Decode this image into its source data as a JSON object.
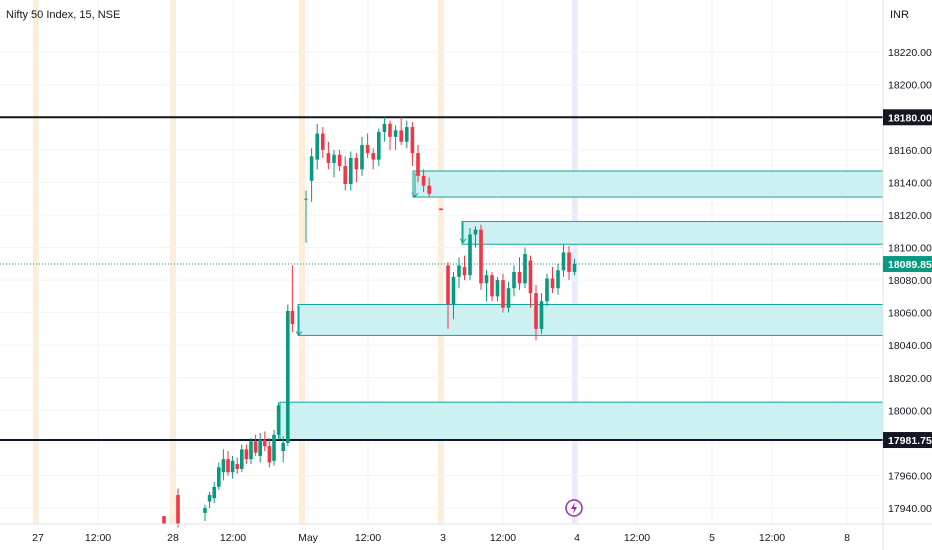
{
  "header": {
    "title": "Nifty 50 Index, 15, NSE",
    "currency": "INR"
  },
  "colors": {
    "up": "#089981",
    "down": "#f23645",
    "zone_fill": "#cdf0f3",
    "zone_border": "#12a596",
    "grid": "#f0f3fa",
    "level_line": "#131722",
    "price_line": "#089981",
    "session_orange": "#ffe8cc",
    "session_blue": "#e3e6fb",
    "alert": "#9c27b0"
  },
  "alert_icon": "lightning-icon",
  "chart_data": {
    "type": "candlestick",
    "title": "Nifty 50 Index, 15, NSE",
    "y_unit": "INR",
    "ylim": [
      17930,
      18235
    ],
    "y_ticks": [
      17940,
      17960,
      17980,
      18000,
      18020,
      18040,
      18060,
      18080,
      18100,
      18120,
      18140,
      18160,
      18180,
      18200,
      18220
    ],
    "y_tick_labels": [
      "17940.00",
      "17960.00",
      "17980.00",
      "18000.00",
      "18020.00",
      "18040.00",
      "18060.00",
      "18080.00",
      "18100.00",
      "18120.00",
      "18140.00",
      "18160.00",
      "18180.00",
      "18200.00",
      "18220.00"
    ],
    "x_tick_labels": [
      "27",
      "12:00",
      "28",
      "12:00",
      "May",
      "12:00",
      "3",
      "12:00",
      "4",
      "12:00",
      "5",
      "12:00",
      "8"
    ],
    "horizontal_levels": [
      {
        "value": 18180,
        "label": "18180.00"
      },
      {
        "value": 17981.75,
        "label": "17981.75"
      }
    ],
    "last_price": {
      "value": 18089.85,
      "label": "18089.85"
    },
    "zones": [
      {
        "from": 18131,
        "to": 18147
      },
      {
        "from": 18102,
        "to": 18116
      },
      {
        "from": 18046,
        "to": 18065
      },
      {
        "from": 17982,
        "to": 18005
      }
    ],
    "candles": [
      [
        17935,
        17935,
        17930,
        17930
      ],
      [
        17948,
        17952,
        17928,
        17930
      ],
      [
        17937,
        17942,
        17932,
        17940
      ],
      [
        17944,
        17950,
        17940,
        17948
      ],
      [
        17946,
        17956,
        17943,
        17953
      ],
      [
        17953,
        17968,
        17951,
        17965
      ],
      [
        17962,
        17976,
        17957,
        17970
      ],
      [
        17970,
        17975,
        17960,
        17962
      ],
      [
        17962,
        17972,
        17958,
        17969
      ],
      [
        17967,
        17971,
        17961,
        17964
      ],
      [
        17964,
        17979,
        17962,
        17976
      ],
      [
        17976,
        17979,
        17967,
        17970
      ],
      [
        17970,
        17983,
        17967,
        17981
      ],
      [
        17981,
        17985,
        17972,
        17974
      ],
      [
        17972,
        17986,
        17968,
        17982
      ],
      [
        17982,
        17987,
        17975,
        17978
      ],
      [
        17978,
        17983,
        17965,
        17968
      ],
      [
        17969,
        17988,
        17966,
        17985
      ],
      [
        17985,
        18005,
        17982,
        18003
      ],
      [
        17975,
        17984,
        17968,
        17980
      ],
      [
        17980,
        18065,
        17978,
        18061
      ],
      [
        18061,
        18089,
        18048,
        18053
      ],
      [
        18130,
        18135,
        18103,
        18130
      ],
      [
        18141,
        18161,
        18128,
        18156
      ],
      [
        18154,
        18176,
        18148,
        18170
      ],
      [
        18170,
        18174,
        18155,
        18160
      ],
      [
        18158,
        18165,
        18148,
        18152
      ],
      [
        18152,
        18160,
        18143,
        18157
      ],
      [
        18157,
        18160,
        18147,
        18150
      ],
      [
        18150,
        18156,
        18135,
        18139
      ],
      [
        18139,
        18159,
        18135,
        18155
      ],
      [
        18155,
        18158,
        18140,
        18148
      ],
      [
        18148,
        18168,
        18144,
        18163
      ],
      [
        18163,
        18170,
        18155,
        18158
      ],
      [
        18158,
        18161,
        18148,
        18154
      ],
      [
        18154,
        18173,
        18150,
        18171
      ],
      [
        18171,
        18180,
        18165,
        18176
      ],
      [
        18176,
        18178,
        18160,
        18168
      ],
      [
        18168,
        18175,
        18160,
        18172
      ],
      [
        18172,
        18180,
        18163,
        18165
      ],
      [
        18165,
        18178,
        18161,
        18174
      ],
      [
        18174,
        18177,
        18150,
        18158
      ],
      [
        18158,
        18163,
        18140,
        18144
      ],
      [
        18144,
        18148,
        18134,
        18138
      ],
      [
        18138,
        18143,
        18131,
        18133
      ],
      [
        18124,
        18124,
        18123,
        18123
      ],
      [
        18089,
        18091,
        18050,
        18065
      ],
      [
        18065,
        18085,
        18056,
        18082
      ],
      [
        18082,
        18094,
        18075,
        18089
      ],
      [
        18088,
        18095,
        18080,
        18083
      ],
      [
        18083,
        18112,
        18080,
        18108
      ],
      [
        18108,
        18113,
        18100,
        18111
      ],
      [
        18111,
        18114,
        18074,
        18078
      ],
      [
        18078,
        18086,
        18067,
        18083
      ],
      [
        18083,
        18085,
        18067,
        18070
      ],
      [
        18070,
        18082,
        18067,
        18080
      ],
      [
        18080,
        18084,
        18060,
        18063
      ],
      [
        18063,
        18079,
        18060,
        18075
      ],
      [
        18075,
        18089,
        18070,
        18085
      ],
      [
        18085,
        18094,
        18074,
        18078
      ],
      [
        18078,
        18100,
        18075,
        18096
      ],
      [
        18092,
        18095,
        18063,
        18072
      ],
      [
        18072,
        18077,
        18043,
        18050
      ],
      [
        18050,
        18072,
        18047,
        18067
      ],
      [
        18067,
        18084,
        18064,
        18081
      ],
      [
        18081,
        18088,
        18072,
        18075
      ],
      [
        18075,
        18090,
        18071,
        18086
      ],
      [
        18086,
        18102,
        18082,
        18097
      ],
      [
        18097,
        18101,
        18080,
        18085
      ],
      [
        18085,
        18093,
        18083,
        18090
      ]
    ]
  }
}
